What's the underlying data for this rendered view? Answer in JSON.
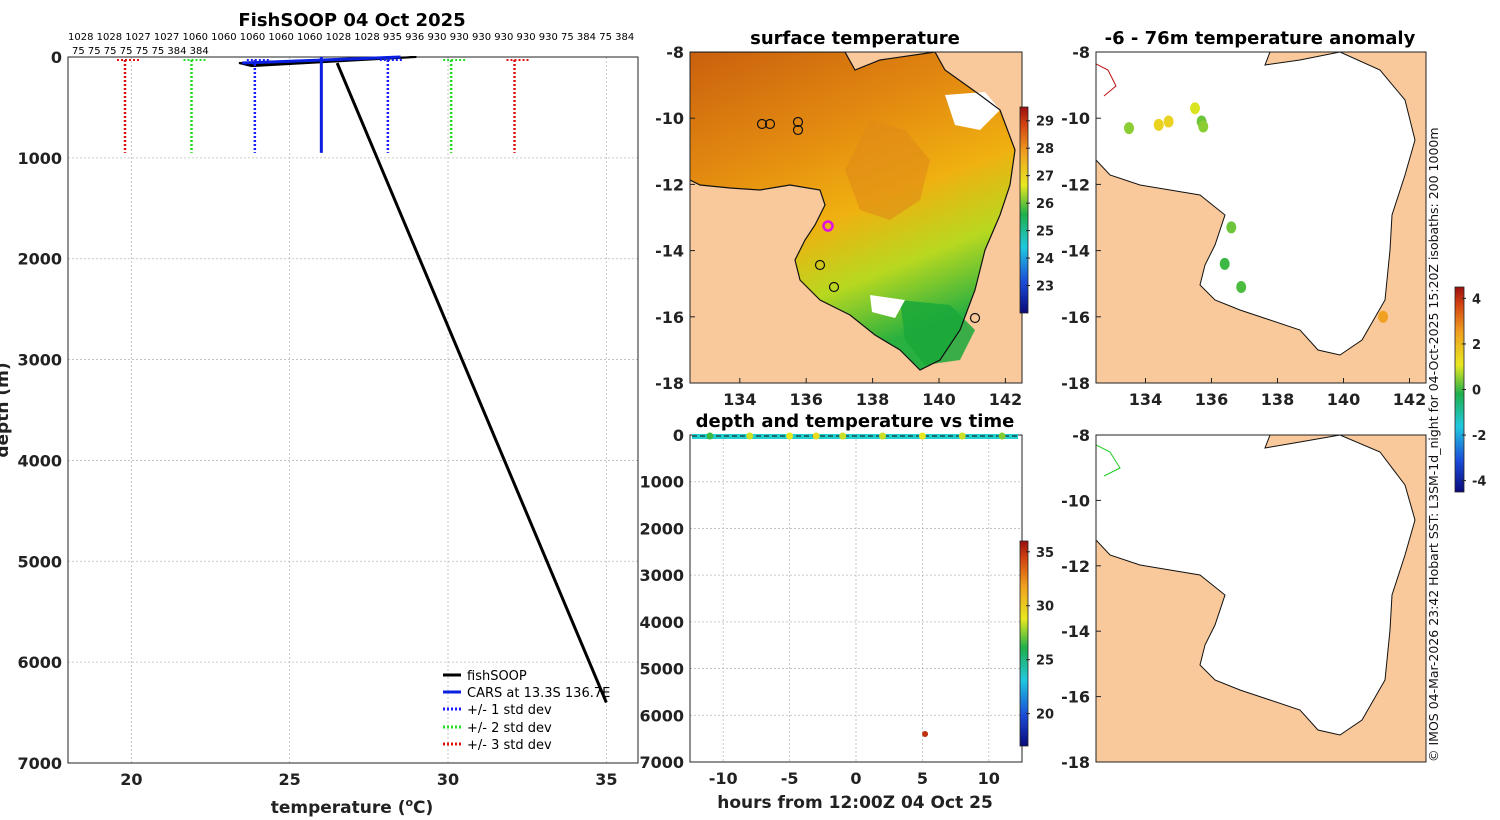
{
  "colors": {
    "land": "#f9c99b",
    "black": "#000000",
    "cars": "#0a1fe0",
    "std1": "#1a1aff",
    "std2": "#22dd22",
    "std3": "#dd1111"
  },
  "profile": {
    "title": "FishSOOP 04 Oct 2025",
    "top_labels_1": "1028 1028 1027 1027 1060 1060 1060 1060 1060 1028 1028 935 936 930 930 930 930 930 930 75 384 75 384",
    "top_labels_2": "75 75 75 75 75 75 384 384",
    "xlabel_main": "temperature (",
    "xlabel_sup": "o",
    "xlabel_tail": "C)",
    "ylabel": "depth (m)",
    "xticks": [
      "20",
      "25",
      "30",
      "35"
    ],
    "yticks": [
      "0",
      "1000",
      "2000",
      "3000",
      "4000",
      "5000",
      "6000",
      "7000"
    ],
    "legend": [
      "fishSOOP",
      "CARS at 13.3S 136.7E",
      "+/- 1 std dev",
      "+/- 2 std dev",
      "+/- 3 std dev"
    ]
  },
  "sst": {
    "title": "surface temperature",
    "xticks": [
      "134",
      "136",
      "138",
      "140",
      "142"
    ],
    "yticks": [
      "-8",
      "-10",
      "-12",
      "-14",
      "-16",
      "-18"
    ],
    "cbar_ticks": [
      "29",
      "28",
      "27",
      "26",
      "25",
      "24",
      "23"
    ]
  },
  "anom": {
    "title": "-6 - 76m temperature anomaly",
    "xticks": [
      "134",
      "136",
      "138",
      "140",
      "142"
    ],
    "yticks": [
      "-8",
      "-10",
      "-12",
      "-14",
      "-16",
      "-18"
    ],
    "cbar_ticks": [
      "4",
      "2",
      "0",
      "-2",
      "-4"
    ]
  },
  "timeplot": {
    "title": "depth and temperature vs time",
    "xlabel": "hours from 12:00Z 04 Oct 25",
    "xticks": [
      "-10",
      "-5",
      "0",
      "5",
      "10"
    ],
    "yticks": [
      "0",
      "1000",
      "2000",
      "3000",
      "4000",
      "5000",
      "6000",
      "7000"
    ],
    "cbar_ticks": [
      "35",
      "30",
      "25",
      "20"
    ]
  },
  "map4": {
    "yticks": [
      "-8",
      "-10",
      "-12",
      "-14",
      "-16",
      "-18"
    ]
  },
  "side_text": "© IMOS 04-Mar-2026 23:42 Hobart SST: L3SM-1d_night for 04-Oct-2025 15:20Z isobaths: 200  1000m",
  "chart_data": [
    {
      "type": "line",
      "title": "FishSOOP 04 Oct 2025",
      "xlabel": "temperature (oC)",
      "ylabel": "depth (m)",
      "xlim": [
        18,
        36
      ],
      "ylim": [
        7000,
        0
      ],
      "series": [
        {
          "name": "fishSOOP",
          "x": [
            26.5,
            35
          ],
          "y": [
            60,
            6400
          ]
        },
        {
          "name": "CARS at 13.3S 136.7E",
          "x": [
            26.0,
            26.0
          ],
          "y": [
            0,
            950
          ]
        },
        {
          "name": "+/- 1 std dev",
          "x": [
            23.9,
            28.1
          ],
          "y": [
            950,
            950
          ]
        },
        {
          "name": "+/- 2 std dev",
          "x": [
            21.9,
            30.1
          ],
          "y": [
            950,
            950
          ]
        },
        {
          "name": "+/- 3 std dev",
          "x": [
            19.8,
            32.1
          ],
          "y": [
            950,
            950
          ]
        }
      ]
    },
    {
      "type": "heatmap",
      "title": "surface temperature",
      "xlim": [
        132.5,
        142.5
      ],
      "ylim": [
        -18,
        -8
      ],
      "colorbar_range": [
        22,
        29.5
      ]
    },
    {
      "type": "scatter",
      "title": "-6 - 76m temperature anomaly",
      "xlim": [
        132.5,
        142.5
      ],
      "ylim": [
        -18,
        -8
      ],
      "colorbar_range": [
        -4.5,
        4.5
      ],
      "points": [
        {
          "lon": 133.5,
          "lat": -10.3,
          "v": 0.5
        },
        {
          "lon": 134.4,
          "lat": -10.2,
          "v": 1.5
        },
        {
          "lon": 134.7,
          "lat": -10.1,
          "v": 1.5
        },
        {
          "lon": 135.5,
          "lat": -9.7,
          "v": 1.0
        },
        {
          "lon": 135.7,
          "lat": -10.1,
          "v": 0.3
        },
        {
          "lon": 135.75,
          "lat": -10.25,
          "v": 0.5
        },
        {
          "lon": 136.6,
          "lat": -13.3,
          "v": 0.3
        },
        {
          "lon": 136.4,
          "lat": -14.4,
          "v": 0.0
        },
        {
          "lon": 136.9,
          "lat": -15.1,
          "v": 0.1
        },
        {
          "lon": 141.2,
          "lat": -16.0,
          "v": 2.5
        }
      ]
    },
    {
      "type": "scatter",
      "title": "depth and temperature vs time",
      "xlabel": "hours from 12:00Z 04 Oct 25",
      "xlim": [
        -12.5,
        12.5
      ],
      "ylim": [
        7000,
        0
      ],
      "colorbar_range": [
        17,
        36
      ],
      "points": [
        {
          "t": 5.2,
          "depth": 6400,
          "temp": 35
        }
      ]
    }
  ]
}
